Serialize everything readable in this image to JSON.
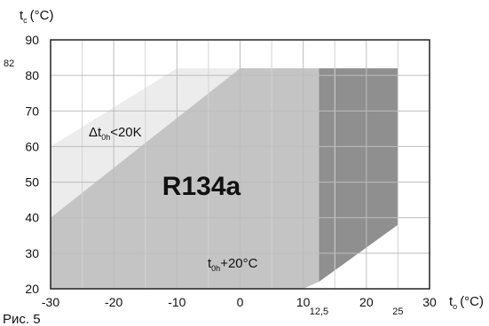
{
  "chart_data": {
    "type": "area",
    "refrigerant_label": "R134a",
    "x_axis": {
      "label_main": "t",
      "label_sub": "o",
      "label_unit": "(°C)",
      "ticks": [
        -30,
        -20,
        -10,
        0,
        10,
        20,
        30
      ],
      "tick_labels": [
        "-30",
        "-20",
        "-10",
        "0",
        "10",
        "20",
        "30"
      ],
      "extra_ticks": [
        12.5,
        25
      ],
      "extra_tick_labels": [
        "12,5",
        "25"
      ],
      "range": [
        -30,
        30
      ]
    },
    "y_axis": {
      "label_main": "t",
      "label_sub": "c",
      "label_unit": "(°C)",
      "ticks": [
        20,
        30,
        40,
        50,
        60,
        70,
        80,
        90
      ],
      "tick_labels": [
        "20",
        "30",
        "40",
        "50",
        "60",
        "70",
        "80",
        "90"
      ],
      "extra_ticks": [
        82
      ],
      "extra_tick_labels": [
        "82"
      ],
      "range": [
        20,
        90
      ]
    },
    "grid": true,
    "regions": [
      {
        "id": "superheat-region",
        "color": "#ececec",
        "points": [
          [
            -30,
            60
          ],
          [
            -10,
            82
          ],
          [
            0,
            82
          ],
          [
            -30,
            40
          ]
        ]
      },
      {
        "id": "main-envelope",
        "color": "#c4c4c4",
        "points": [
          [
            -30,
            40
          ],
          [
            0,
            82
          ],
          [
            12.5,
            82
          ],
          [
            12.5,
            22
          ],
          [
            10,
            20
          ],
          [
            -30,
            20
          ]
        ]
      },
      {
        "id": "extended-envelope",
        "color": "#8f8f8f",
        "points": [
          [
            12.5,
            82
          ],
          [
            25,
            82
          ],
          [
            25,
            38
          ],
          [
            12.5,
            22
          ]
        ]
      }
    ],
    "annotations": {
      "delta": {
        "prefix": "Δt",
        "sub": "0h",
        "suffix": "<20K"
      },
      "superheat": {
        "prefix": "t",
        "sub": "0h",
        "suffix": "+20°C"
      }
    }
  },
  "caption": "Рис. 5"
}
